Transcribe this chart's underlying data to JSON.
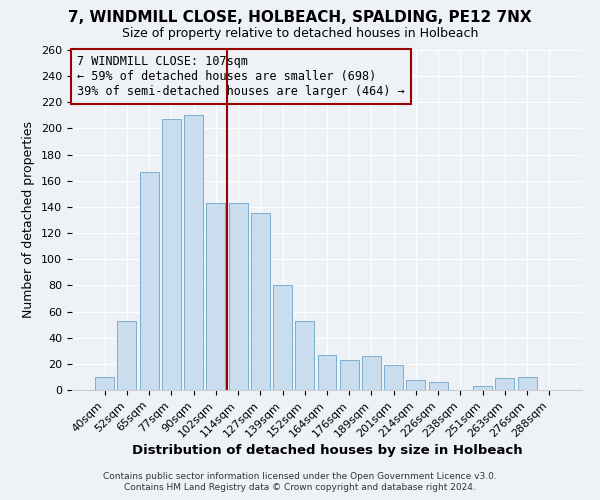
{
  "title": "7, WINDMILL CLOSE, HOLBEACH, SPALDING, PE12 7NX",
  "subtitle": "Size of property relative to detached houses in Holbeach",
  "xlabel": "Distribution of detached houses by size in Holbeach",
  "ylabel": "Number of detached properties",
  "footer1": "Contains HM Land Registry data © Crown copyright and database right 2024.",
  "footer2": "Contains public sector information licensed under the Open Government Licence v3.0.",
  "bar_labels": [
    "40sqm",
    "52sqm",
    "65sqm",
    "77sqm",
    "90sqm",
    "102sqm",
    "114sqm",
    "127sqm",
    "139sqm",
    "152sqm",
    "164sqm",
    "176sqm",
    "189sqm",
    "201sqm",
    "214sqm",
    "226sqm",
    "238sqm",
    "251sqm",
    "263sqm",
    "276sqm",
    "288sqm"
  ],
  "bar_values": [
    10,
    53,
    167,
    207,
    210,
    143,
    143,
    135,
    80,
    53,
    27,
    23,
    26,
    19,
    8,
    6,
    0,
    3,
    9,
    10
  ],
  "bar_color": "#c9ddef",
  "bar_edgecolor": "#7aaed0",
  "annotation_title": "7 WINDMILL CLOSE: 107sqm",
  "annotation_line1": "← 59% of detached houses are smaller (698)",
  "annotation_line2": "39% of semi-detached houses are larger (464) →",
  "vline_x": 5.5,
  "vline_color": "#990000",
  "annotation_box_edgecolor": "#990000",
  "background_color": "#eef2f7",
  "grid_color": "#ffffff",
  "ylim": [
    0,
    260
  ],
  "yticks": [
    0,
    20,
    40,
    60,
    80,
    100,
    120,
    140,
    160,
    180,
    200,
    220,
    240,
    260
  ],
  "title_fontsize": 11,
  "subtitle_fontsize": 9,
  "ylabel_fontsize": 9,
  "xlabel_fontsize": 9.5,
  "tick_fontsize": 8,
  "annot_fontsize": 8.5,
  "footer_fontsize": 6.5
}
